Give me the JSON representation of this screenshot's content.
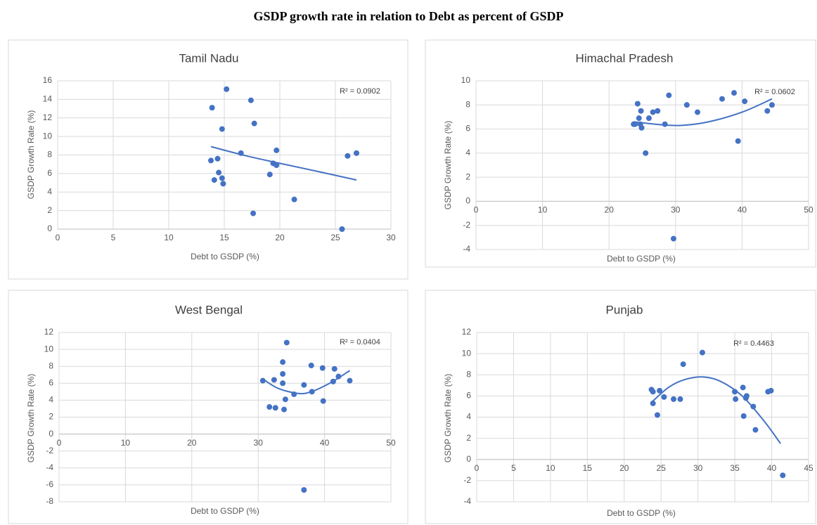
{
  "title": "GSDP growth rate in relation to Debt as percent of GSDP",
  "chart_data": [
    {
      "type": "scatter",
      "title": "Tamil Nadu",
      "x_label": "Debt to GSDP (%)",
      "y_label": "GSDP Growth Rate (%)",
      "color": "#4472c4",
      "grid": true,
      "x": [
        13.9,
        13.8,
        14.1,
        14.4,
        14.5,
        14.8,
        14.8,
        14.9,
        15.2,
        16.5,
        17.4,
        17.7,
        17.6,
        19.1,
        19.4,
        19.7,
        19.7,
        21.3,
        25.6,
        26.1,
        26.9
      ],
      "y": [
        13.1,
        7.4,
        5.3,
        7.6,
        6.1,
        10.8,
        5.5,
        4.9,
        15.1,
        8.2,
        13.9,
        11.4,
        1.7,
        5.9,
        7.1,
        8.5,
        6.9,
        3.2,
        0,
        7.9,
        8.2
      ],
      "trendline": {
        "x": [
          13.8,
          17,
          20,
          23.5,
          26.9
        ],
        "y": [
          8.9,
          7.9,
          7.1,
          6.2,
          5.3
        ],
        "label": "R² = 0.0902"
      },
      "xlim": [
        0,
        30
      ],
      "xticks": [
        0,
        5,
        10,
        15,
        20,
        25,
        30
      ],
      "ylim": [
        0,
        16
      ],
      "yticks": [
        0,
        2,
        4,
        6,
        8,
        10,
        12,
        14,
        16
      ]
    },
    {
      "type": "scatter",
      "title": "Himachal Pradesh",
      "x_label": "Debt to GSDP (%)",
      "y_label": "GSDP Growth Rate (%)",
      "color": "#4472c4",
      "grid": true,
      "x": [
        23.7,
        23.9,
        24.3,
        24.5,
        24.7,
        24.8,
        24.9,
        25.5,
        26.0,
        26.6,
        27.3,
        28.4,
        29.0,
        29.7,
        31.7,
        33.3,
        37.0,
        38.8,
        39.4,
        40.4,
        43.8,
        44.5
      ],
      "y": [
        6.4,
        6.4,
        8.1,
        6.9,
        6.4,
        7.5,
        6.1,
        4.0,
        6.9,
        7.4,
        7.5,
        6.4,
        8.8,
        -3.1,
        8.0,
        7.4,
        8.5,
        9.0,
        5.0,
        8.3,
        7.5,
        8.0
      ],
      "trendline": {
        "x": [
          23.7,
          28,
          31,
          35,
          40,
          44.5
        ],
        "y": [
          6.6,
          6.35,
          6.3,
          6.6,
          7.4,
          8.5
        ],
        "label": "R² = 0.0602"
      },
      "xlim": [
        0,
        50
      ],
      "xticks": [
        0,
        10,
        20,
        30,
        40,
        50
      ],
      "ylim": [
        -4,
        10
      ],
      "yticks": [
        -4,
        -2,
        0,
        2,
        4,
        6,
        8,
        10
      ]
    },
    {
      "type": "scatter",
      "title": "West Bengal",
      "x_label": "Debt to GSDP (%)",
      "y_label": "GSDP Growth Rate (%)",
      "color": "#4472c4",
      "grid": true,
      "x": [
        30.7,
        31.7,
        32.4,
        32.6,
        33.7,
        33.7,
        33.7,
        33.9,
        34.1,
        34.3,
        35.4,
        36.9,
        36.9,
        38.0,
        38.1,
        39.7,
        39.8,
        41.3,
        41.5,
        42.1,
        43.8
      ],
      "y": [
        6.3,
        3.2,
        6.4,
        3.1,
        8.5,
        7.1,
        6.0,
        2.9,
        4.1,
        10.8,
        4.7,
        5.8,
        -6.6,
        8.1,
        5.0,
        7.8,
        3.9,
        6.2,
        7.7,
        6.8,
        6.3
      ],
      "trendline": {
        "x": [
          30.7,
          33,
          36,
          38,
          41,
          43.8
        ],
        "y": [
          6.5,
          5.4,
          4.8,
          5.0,
          6.1,
          7.5
        ],
        "label": "R² = 0.0404"
      },
      "xlim": [
        0,
        50
      ],
      "xticks": [
        0,
        10,
        20,
        30,
        40,
        50
      ],
      "ylim": [
        -8,
        12
      ],
      "yticks": [
        -8,
        -6,
        -4,
        -2,
        0,
        2,
        4,
        6,
        8,
        10,
        12
      ]
    },
    {
      "type": "scatter",
      "title": "Punjab",
      "x_label": "Debt to GSDP (%)",
      "y_label": "GSDP Growth Rate (%)",
      "color": "#4472c4",
      "grid": true,
      "x": [
        23.7,
        23.9,
        23.9,
        24.5,
        24.8,
        25.4,
        26.7,
        27.6,
        28.0,
        30.6,
        35.0,
        35.1,
        36.1,
        36.2,
        36.5,
        36.6,
        37.5,
        37.8,
        39.5,
        39.9,
        41.5
      ],
      "y": [
        6.6,
        6.4,
        5.3,
        4.2,
        6.5,
        5.9,
        5.7,
        5.7,
        9.0,
        10.1,
        6.4,
        5.7,
        6.8,
        4.1,
        5.8,
        6.0,
        5.0,
        2.8,
        6.4,
        6.5,
        -1.5
      ],
      "trendline": {
        "x": [
          23.7,
          26,
          28,
          30.5,
          33,
          36,
          39,
          41.2
        ],
        "y": [
          5.4,
          6.8,
          7.5,
          7.8,
          7.4,
          6.0,
          3.6,
          1.5
        ],
        "label": "R² = 0.4463"
      },
      "xlim": [
        0,
        45
      ],
      "xticks": [
        0,
        5,
        10,
        15,
        20,
        25,
        30,
        35,
        40,
        45
      ],
      "ylim": [
        -4,
        12
      ],
      "yticks": [
        -4,
        -2,
        0,
        2,
        4,
        6,
        8,
        10,
        12
      ]
    }
  ]
}
